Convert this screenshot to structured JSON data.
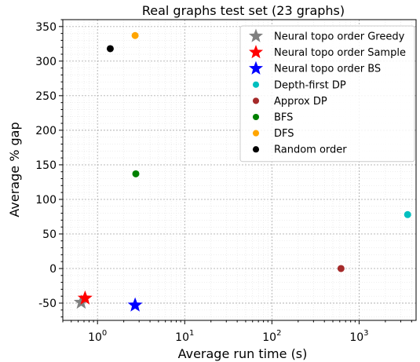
{
  "chart_data": {
    "type": "scatter",
    "title": "Real graphs test set (23 graphs)",
    "xlabel": "Average run time (s)",
    "ylabel": "Average % gap",
    "xscale": "log",
    "xlim": [
      0.4,
      4500
    ],
    "ylim": [
      -75,
      360
    ],
    "yticks": [
      -50,
      0,
      50,
      100,
      150,
      200,
      250,
      300,
      350
    ],
    "xticks": [
      1,
      10,
      100,
      1000
    ],
    "xtick_labels": [
      {
        "base": "10",
        "exp": "0"
      },
      {
        "base": "10",
        "exp": "1"
      },
      {
        "base": "10",
        "exp": "2"
      },
      {
        "base": "10",
        "exp": "3"
      }
    ],
    "grid": true,
    "legend_position": "top-right",
    "series": [
      {
        "name": "Neural topo order Greedy",
        "marker": "star",
        "color": "#808080",
        "x": 0.65,
        "y": -49
      },
      {
        "name": "Neural topo order Sample",
        "marker": "star",
        "color": "#ff0000",
        "x": 0.72,
        "y": -43
      },
      {
        "name": "Neural topo order BS",
        "marker": "star",
        "color": "#0000ff",
        "x": 2.7,
        "y": -53
      },
      {
        "name": "Depth-first DP",
        "marker": "circle",
        "color": "#00bfbf",
        "x": 3600,
        "y": 78
      },
      {
        "name": "Approx DP",
        "marker": "circle",
        "color": "#a52a2a",
        "x": 620,
        "y": 0
      },
      {
        "name": "BFS",
        "marker": "circle",
        "color": "#008000",
        "x": 2.75,
        "y": 137
      },
      {
        "name": "DFS",
        "marker": "circle",
        "color": "#ffa500",
        "x": 2.7,
        "y": 337
      },
      {
        "name": "Random order",
        "marker": "circle",
        "color": "#000000",
        "x": 1.4,
        "y": 318
      }
    ]
  }
}
